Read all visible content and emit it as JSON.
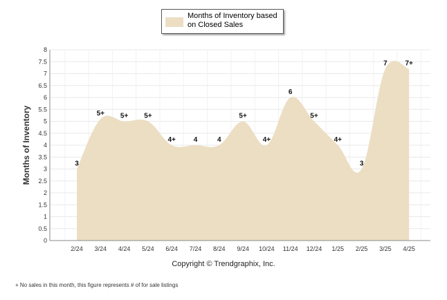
{
  "chart_data": {
    "type": "area",
    "categories": [
      "2/24",
      "3/24",
      "4/24",
      "5/24",
      "6/24",
      "7/24",
      "8/24",
      "9/24",
      "10/24",
      "11/24",
      "12/24",
      "1/25",
      "2/25",
      "3/25",
      "4/25"
    ],
    "series": [
      {
        "name": "Months of Inventory based on Closed Sales",
        "values": [
          3,
          5.1,
          5,
          5,
          4,
          4,
          4,
          5,
          4,
          6,
          5,
          4,
          3,
          7.2,
          7.2
        ],
        "labels": [
          "3",
          "5+",
          "5+",
          "5+",
          "4+",
          "4",
          "4",
          "5+",
          "4+",
          "6",
          "5+",
          "4+",
          "3",
          "7",
          "7+"
        ]
      }
    ],
    "ylabel": "Months of Inventory",
    "xlabel": "",
    "ylim": [
      0,
      8
    ],
    "yticks": [
      "0",
      "0.5",
      "1",
      "1.5",
      "2",
      "2.5",
      "3",
      "3.5",
      "4",
      "4.5",
      "5",
      "5.5",
      "6",
      "6.5",
      "7",
      "7.5",
      "8"
    ],
    "grid": true,
    "legend_position": "top",
    "fill_color": "#ecdec3",
    "copyright": "Copyright © Trendgraphix, Inc.",
    "footnote": "+  No sales in this month, this figure represents # of for sale listings"
  },
  "legend": {
    "label": "Months of Inventory based on Closed Sales"
  }
}
